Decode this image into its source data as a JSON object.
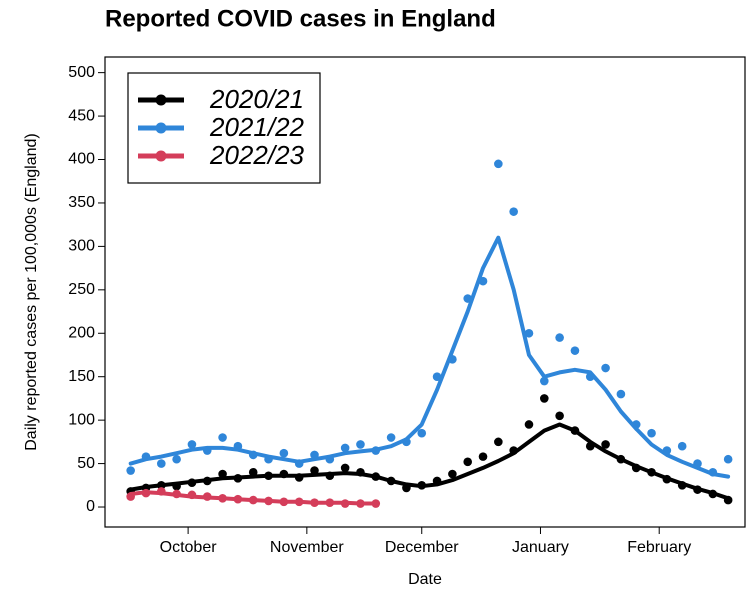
{
  "chart_data": {
    "type": "scatter",
    "title": "Reported COVID cases in England",
    "xlabel": "Date",
    "ylabel": "Daily reported cases per 100,000s (England)",
    "xlim": [
      -21.7,
      145.4
    ],
    "xticks": [
      {
        "value": 0,
        "label": "October"
      },
      {
        "value": 31,
        "label": "November"
      },
      {
        "value": 61,
        "label": "December"
      },
      {
        "value": 92,
        "label": "January"
      },
      {
        "value": 123,
        "label": "February"
      }
    ],
    "ylim": [
      -23,
      518
    ],
    "yticks": [
      0,
      50,
      100,
      150,
      200,
      250,
      300,
      350,
      400,
      450,
      500
    ],
    "legend": "upper left",
    "series": [
      {
        "name": "2020/21",
        "color": "#000000",
        "x": [
          -15,
          -11,
          -7,
          -3,
          1,
          5,
          9,
          13,
          17,
          21,
          25,
          29,
          33,
          37,
          41,
          45,
          49,
          53,
          57,
          61,
          65,
          69,
          73,
          77,
          81,
          85,
          89,
          93,
          97,
          101,
          105,
          109,
          113,
          117,
          121,
          125,
          129,
          133,
          137,
          141
        ],
        "values": [
          18,
          22,
          25,
          24,
          28,
          30,
          38,
          33,
          40,
          36,
          38,
          34,
          42,
          36,
          45,
          40,
          35,
          30,
          22,
          25,
          30,
          38,
          52,
          58,
          75,
          65,
          95,
          125,
          105,
          88,
          70,
          72,
          55,
          45,
          40,
          32,
          25,
          20,
          15,
          8
        ],
        "trend": [
          20,
          23,
          25,
          27,
          29,
          31,
          33,
          34,
          35,
          36,
          36,
          36,
          37,
          38,
          39,
          38,
          35,
          30,
          26,
          24,
          26,
          31,
          38,
          45,
          53,
          62,
          75,
          88,
          95,
          88,
          75,
          64,
          55,
          47,
          40,
          33,
          27,
          21,
          16,
          10
        ]
      },
      {
        "name": "2021/22",
        "color": "#2f86d9",
        "x": [
          -15,
          -11,
          -7,
          -3,
          1,
          5,
          9,
          13,
          17,
          21,
          25,
          29,
          33,
          37,
          41,
          45,
          49,
          53,
          57,
          61,
          65,
          69,
          73,
          77,
          81,
          85,
          89,
          93,
          97,
          101,
          105,
          109,
          113,
          117,
          121,
          125,
          129,
          133,
          137,
          141
        ],
        "values": [
          42,
          58,
          50,
          55,
          72,
          65,
          80,
          70,
          60,
          55,
          62,
          50,
          60,
          55,
          68,
          72,
          65,
          80,
          75,
          85,
          150,
          170,
          240,
          260,
          395,
          340,
          200,
          145,
          195,
          180,
          150,
          160,
          130,
          95,
          85,
          65,
          70,
          50,
          40,
          55
        ],
        "trend": [
          50,
          55,
          58,
          62,
          66,
          68,
          68,
          66,
          62,
          58,
          55,
          52,
          55,
          58,
          62,
          64,
          66,
          70,
          78,
          95,
          135,
          180,
          225,
          275,
          310,
          250,
          175,
          150,
          155,
          158,
          155,
          135,
          110,
          90,
          72,
          60,
          52,
          45,
          38,
          35
        ]
      },
      {
        "name": "2022/23",
        "color": "#d43d5a",
        "x": [
          -15,
          -11,
          -7,
          -3,
          1,
          5,
          9,
          13,
          17,
          21,
          25,
          29,
          33,
          37,
          41,
          45,
          49
        ],
        "values": [
          12,
          16,
          18,
          15,
          14,
          12,
          10,
          9,
          8,
          7,
          6,
          6,
          5,
          5,
          4,
          4,
          4
        ],
        "trend": [
          15,
          17,
          16,
          14,
          12,
          11,
          10,
          9,
          8,
          7,
          6,
          6,
          5,
          5,
          5,
          4,
          4
        ]
      }
    ]
  }
}
